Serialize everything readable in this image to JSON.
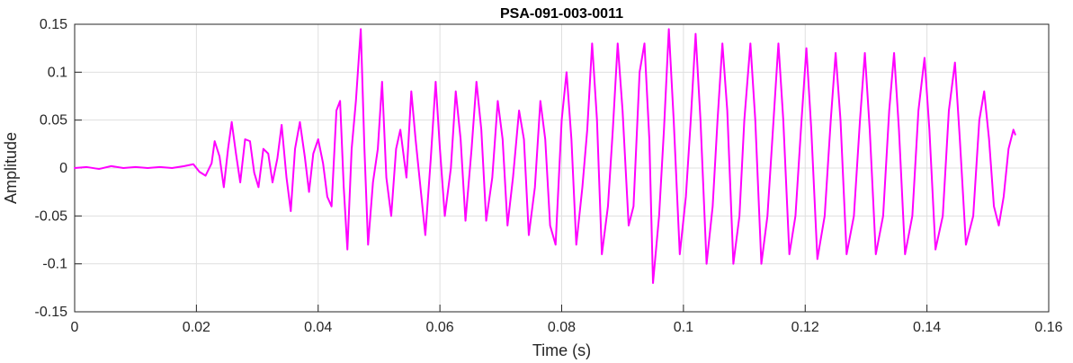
{
  "chart_data": {
    "type": "line",
    "title": "PSA-091-003-0011",
    "xlabel": "Time (s)",
    "ylabel": "Amplitude",
    "xlim": [
      0,
      0.16
    ],
    "ylim": [
      -0.15,
      0.15
    ],
    "xticks": [
      0,
      0.02,
      0.04,
      0.06,
      0.08,
      0.1,
      0.12,
      0.14,
      0.16
    ],
    "xtick_labels": [
      "0",
      "0.02",
      "0.04",
      "0.06",
      "0.08",
      "0.1",
      "0.12",
      "0.14",
      "0.16"
    ],
    "yticks": [
      -0.15,
      -0.1,
      -0.05,
      0,
      0.05,
      0.1,
      0.15
    ],
    "ytick_labels": [
      "-0.15",
      "-0.1",
      "-0.05",
      "0",
      "0.05",
      "0.1",
      "0.15"
    ],
    "grid": true,
    "line_color": "#ff00ff",
    "series": [
      {
        "name": "",
        "points": [
          [
            0,
            0
          ],
          [
            0.002,
            0.001
          ],
          [
            0.004,
            -0.001
          ],
          [
            0.006,
            0.002
          ],
          [
            0.008,
            0.0
          ],
          [
            0.01,
            0.001
          ],
          [
            0.012,
            0.0
          ],
          [
            0.014,
            0.001
          ],
          [
            0.016,
            0.0
          ],
          [
            0.018,
            0.002
          ],
          [
            0.0195,
            0.004
          ],
          [
            0.0205,
            -0.004
          ],
          [
            0.0215,
            -0.008
          ],
          [
            0.0225,
            0.005
          ],
          [
            0.023,
            0.028
          ],
          [
            0.0238,
            0.012
          ],
          [
            0.0245,
            -0.02
          ],
          [
            0.0252,
            0.02
          ],
          [
            0.0258,
            0.048
          ],
          [
            0.0265,
            0.015
          ],
          [
            0.0272,
            -0.015
          ],
          [
            0.028,
            0.03
          ],
          [
            0.0288,
            0.028
          ],
          [
            0.0295,
            -0.005
          ],
          [
            0.0302,
            -0.02
          ],
          [
            0.031,
            0.02
          ],
          [
            0.0318,
            0.015
          ],
          [
            0.0325,
            -0.015
          ],
          [
            0.0333,
            0.01
          ],
          [
            0.034,
            0.045
          ],
          [
            0.0348,
            -0.01
          ],
          [
            0.0355,
            -0.045
          ],
          [
            0.0362,
            0.02
          ],
          [
            0.037,
            0.048
          ],
          [
            0.0378,
            0.012
          ],
          [
            0.0385,
            -0.025
          ],
          [
            0.0392,
            0.015
          ],
          [
            0.04,
            0.03
          ],
          [
            0.0408,
            0.005
          ],
          [
            0.0415,
            -0.03
          ],
          [
            0.0422,
            -0.04
          ],
          [
            0.043,
            0.06
          ],
          [
            0.0436,
            0.07
          ],
          [
            0.0442,
            -0.02
          ],
          [
            0.0448,
            -0.085
          ],
          [
            0.0455,
            0.02
          ],
          [
            0.0462,
            0.07
          ],
          [
            0.047,
            0.145
          ],
          [
            0.0476,
            0.02
          ],
          [
            0.0482,
            -0.08
          ],
          [
            0.049,
            -0.015
          ],
          [
            0.0498,
            0.02
          ],
          [
            0.0505,
            0.09
          ],
          [
            0.0512,
            -0.01
          ],
          [
            0.052,
            -0.05
          ],
          [
            0.0528,
            0.02
          ],
          [
            0.0535,
            0.04
          ],
          [
            0.0545,
            -0.01
          ],
          [
            0.0553,
            0.08
          ],
          [
            0.056,
            0.03
          ],
          [
            0.0568,
            -0.02
          ],
          [
            0.0576,
            -0.07
          ],
          [
            0.0585,
            0.01
          ],
          [
            0.0593,
            0.09
          ],
          [
            0.06,
            0.02
          ],
          [
            0.0608,
            -0.05
          ],
          [
            0.0618,
            0.0
          ],
          [
            0.0626,
            0.08
          ],
          [
            0.0634,
            0.03
          ],
          [
            0.0642,
            -0.055
          ],
          [
            0.0652,
            0.02
          ],
          [
            0.066,
            0.09
          ],
          [
            0.0668,
            0.04
          ],
          [
            0.0676,
            -0.055
          ],
          [
            0.0686,
            -0.01
          ],
          [
            0.0695,
            0.07
          ],
          [
            0.0703,
            0.03
          ],
          [
            0.0711,
            -0.06
          ],
          [
            0.072,
            -0.01
          ],
          [
            0.073,
            0.06
          ],
          [
            0.0738,
            0.03
          ],
          [
            0.0746,
            -0.07
          ],
          [
            0.0756,
            -0.02
          ],
          [
            0.0765,
            0.07
          ],
          [
            0.0773,
            0.03
          ],
          [
            0.0781,
            -0.06
          ],
          [
            0.079,
            -0.08
          ],
          [
            0.08,
            0.05
          ],
          [
            0.0808,
            0.1
          ],
          [
            0.0816,
            0.03
          ],
          [
            0.0824,
            -0.08
          ],
          [
            0.0834,
            -0.02
          ],
          [
            0.0842,
            0.04
          ],
          [
            0.085,
            0.13
          ],
          [
            0.0858,
            0.05
          ],
          [
            0.0866,
            -0.09
          ],
          [
            0.0876,
            -0.04
          ],
          [
            0.0884,
            0.04
          ],
          [
            0.0892,
            0.13
          ],
          [
            0.09,
            0.06
          ],
          [
            0.091,
            -0.06
          ],
          [
            0.0918,
            -0.04
          ],
          [
            0.0928,
            0.1
          ],
          [
            0.0936,
            0.13
          ],
          [
            0.0944,
            0.03
          ],
          [
            0.095,
            -0.12
          ],
          [
            0.096,
            -0.05
          ],
          [
            0.0968,
            0.04
          ],
          [
            0.0976,
            0.145
          ],
          [
            0.0984,
            0.05
          ],
          [
            0.0994,
            -0.09
          ],
          [
            0.1004,
            -0.03
          ],
          [
            0.1012,
            0.05
          ],
          [
            0.102,
            0.14
          ],
          [
            0.1028,
            0.05
          ],
          [
            0.1038,
            -0.1
          ],
          [
            0.1048,
            -0.04
          ],
          [
            0.1056,
            0.05
          ],
          [
            0.1064,
            0.13
          ],
          [
            0.1072,
            0.06
          ],
          [
            0.1082,
            -0.1
          ],
          [
            0.1092,
            -0.05
          ],
          [
            0.11,
            0.05
          ],
          [
            0.111,
            0.13
          ],
          [
            0.1118,
            0.05
          ],
          [
            0.1128,
            -0.1
          ],
          [
            0.1138,
            -0.05
          ],
          [
            0.1148,
            0.05
          ],
          [
            0.1156,
            0.13
          ],
          [
            0.1164,
            0.05
          ],
          [
            0.1174,
            -0.09
          ],
          [
            0.1184,
            -0.05
          ],
          [
            0.1194,
            0.05
          ],
          [
            0.1202,
            0.125
          ],
          [
            0.121,
            0.04
          ],
          [
            0.122,
            -0.095
          ],
          [
            0.1232,
            -0.05
          ],
          [
            0.1242,
            0.05
          ],
          [
            0.125,
            0.12
          ],
          [
            0.1258,
            0.05
          ],
          [
            0.1268,
            -0.09
          ],
          [
            0.128,
            -0.05
          ],
          [
            0.129,
            0.05
          ],
          [
            0.1298,
            0.12
          ],
          [
            0.1306,
            0.04
          ],
          [
            0.1316,
            -0.09
          ],
          [
            0.1328,
            -0.05
          ],
          [
            0.1338,
            0.06
          ],
          [
            0.1346,
            0.12
          ],
          [
            0.1354,
            0.04
          ],
          [
            0.1364,
            -0.09
          ],
          [
            0.1376,
            -0.05
          ],
          [
            0.1386,
            0.06
          ],
          [
            0.1396,
            0.115
          ],
          [
            0.1404,
            0.04
          ],
          [
            0.1414,
            -0.085
          ],
          [
            0.1426,
            -0.05
          ],
          [
            0.1436,
            0.06
          ],
          [
            0.1446,
            0.11
          ],
          [
            0.1454,
            0.03
          ],
          [
            0.1464,
            -0.08
          ],
          [
            0.1476,
            -0.05
          ],
          [
            0.1486,
            0.05
          ],
          [
            0.1494,
            0.08
          ],
          [
            0.1502,
            0.03
          ],
          [
            0.151,
            -0.04
          ],
          [
            0.1518,
            -0.06
          ],
          [
            0.1526,
            -0.03
          ],
          [
            0.1534,
            0.02
          ],
          [
            0.1542,
            0.04
          ],
          [
            0.1545,
            0.035
          ]
        ]
      }
    ]
  }
}
